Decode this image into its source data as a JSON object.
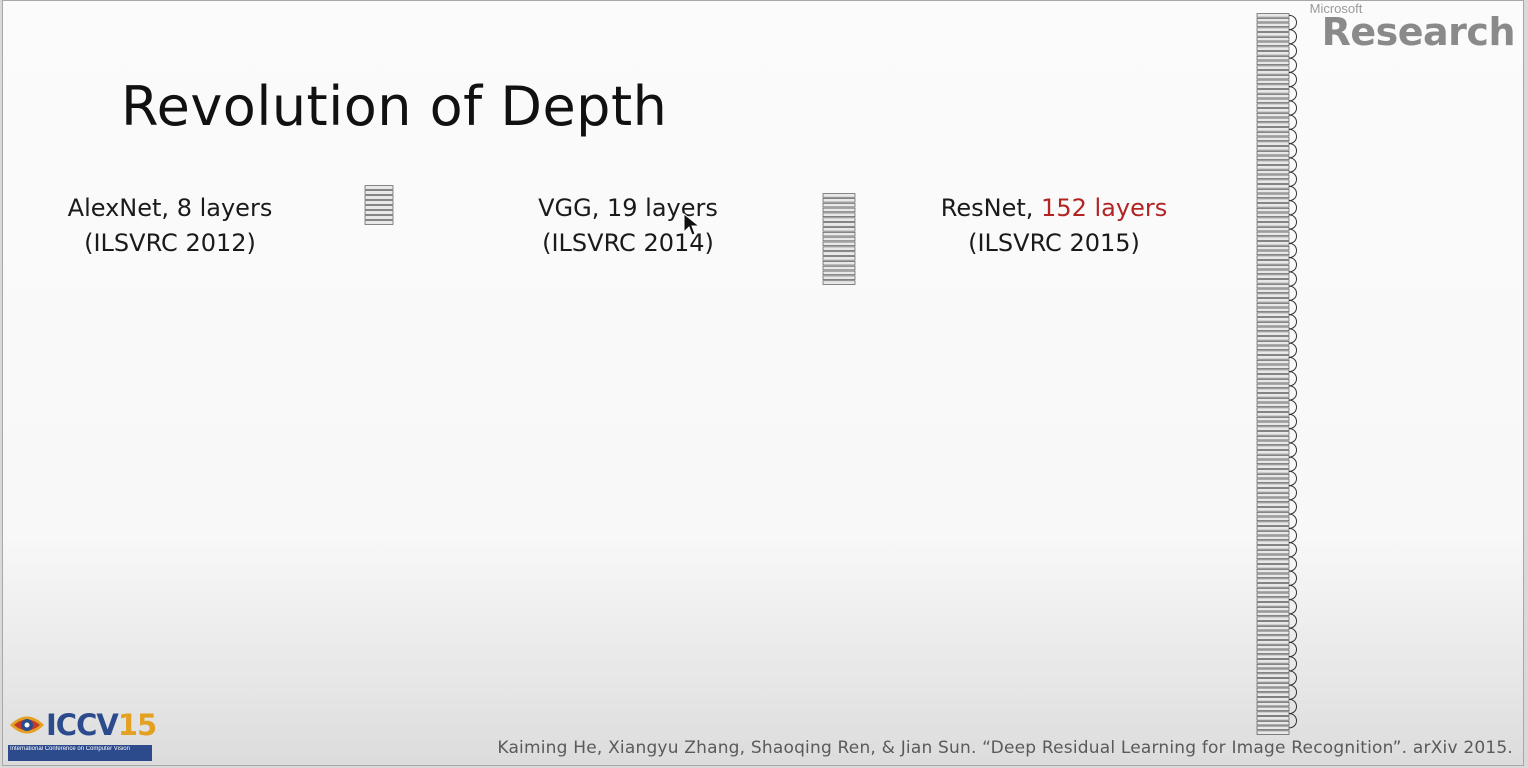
{
  "slide": {
    "title": "Revolution of Depth",
    "networks": [
      {
        "name": "AlexNet, 8 layers",
        "name_prefix": "AlexNet, ",
        "layers_text": "8 layers",
        "challenge": "(ILSVRC 2012)",
        "layer_count": 8,
        "highlight": false
      },
      {
        "name": "VGG, 19 layers",
        "name_prefix": "VGG, ",
        "layers_text": "19 layers",
        "challenge": "(ILSVRC 2014)",
        "layer_count": 19,
        "highlight": false
      },
      {
        "name": "ResNet, 152 layers",
        "name_prefix": "ResNet, ",
        "layers_text": "152 layers",
        "challenge": "(ILSVRC 2015)",
        "layer_count": 152,
        "highlight": true
      }
    ],
    "citation": "Kaiming He, Xiangyu Zhang, Shaoqing Ren, & Jian Sun. “Deep Residual Learning for Image Recognition”. arXiv 2015.",
    "branding": {
      "company": "Microsoft",
      "division": "Research"
    },
    "conference_logo": {
      "text": "ICCV",
      "number": "15",
      "subtitle": "International Conference on Computer Vision"
    },
    "colors": {
      "highlight": "#b22424",
      "text": "#1a1a1a",
      "diagram_stroke": "#555555"
    }
  }
}
